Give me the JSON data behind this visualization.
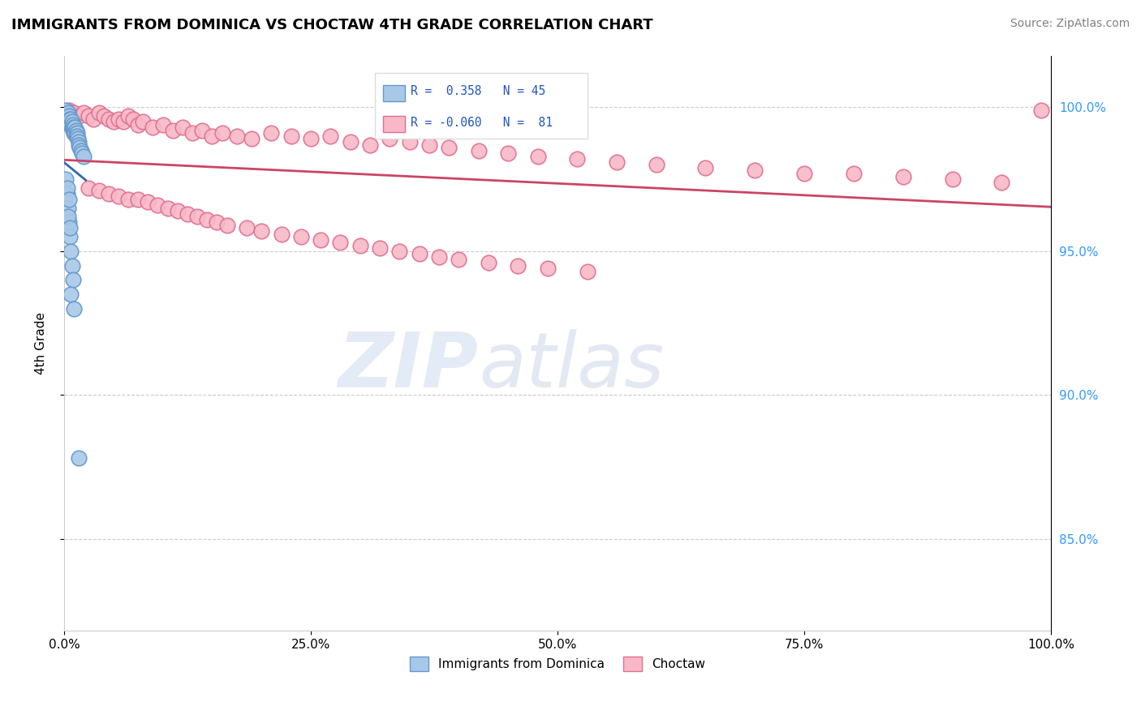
{
  "title": "IMMIGRANTS FROM DOMINICA VS CHOCTAW 4TH GRADE CORRELATION CHART",
  "source": "Source: ZipAtlas.com",
  "ylabel": "4th Grade",
  "ytick_values": [
    0.85,
    0.9,
    0.95,
    1.0
  ],
  "xlim": [
    0.0,
    1.0
  ],
  "ylim": [
    0.818,
    1.018
  ],
  "blue_color": "#a8c8e8",
  "blue_edge": "#6699cc",
  "pink_color": "#f8b8c8",
  "pink_edge": "#e07090",
  "trend_blue": "#3366bb",
  "trend_pink": "#cc4466",
  "watermark_zip": "ZIP",
  "watermark_atlas": "atlas",
  "legend_label1": "Immigrants from Dominica",
  "legend_label2": "Choctaw",
  "blue_scatter_x": [
    0.001,
    0.002,
    0.003,
    0.004,
    0.004,
    0.005,
    0.005,
    0.006,
    0.006,
    0.007,
    0.007,
    0.008,
    0.008,
    0.009,
    0.009,
    0.01,
    0.01,
    0.011,
    0.011,
    0.012,
    0.012,
    0.013,
    0.013,
    0.014,
    0.015,
    0.015,
    0.016,
    0.017,
    0.018,
    0.02,
    0.003,
    0.004,
    0.005,
    0.006,
    0.007,
    0.008,
    0.002,
    0.003,
    0.005,
    0.004,
    0.006,
    0.009,
    0.007,
    0.01,
    0.015
  ],
  "blue_scatter_y": [
    0.998,
    0.999,
    0.997,
    0.998,
    0.996,
    0.997,
    0.995,
    0.996,
    0.994,
    0.996,
    0.994,
    0.995,
    0.993,
    0.994,
    0.992,
    0.993,
    0.991,
    0.993,
    0.991,
    0.992,
    0.99,
    0.991,
    0.99,
    0.989,
    0.988,
    0.987,
    0.986,
    0.985,
    0.984,
    0.983,
    0.97,
    0.965,
    0.96,
    0.955,
    0.95,
    0.945,
    0.975,
    0.972,
    0.968,
    0.962,
    0.958,
    0.94,
    0.935,
    0.93,
    0.878
  ],
  "pink_scatter_x": [
    0.005,
    0.01,
    0.015,
    0.02,
    0.025,
    0.03,
    0.035,
    0.04,
    0.045,
    0.05,
    0.055,
    0.06,
    0.065,
    0.07,
    0.075,
    0.08,
    0.09,
    0.1,
    0.11,
    0.12,
    0.13,
    0.14,
    0.15,
    0.16,
    0.175,
    0.19,
    0.21,
    0.23,
    0.25,
    0.27,
    0.29,
    0.31,
    0.33,
    0.35,
    0.37,
    0.39,
    0.42,
    0.45,
    0.48,
    0.52,
    0.56,
    0.6,
    0.65,
    0.7,
    0.75,
    0.8,
    0.85,
    0.9,
    0.95,
    0.99,
    0.025,
    0.035,
    0.045,
    0.055,
    0.065,
    0.075,
    0.085,
    0.095,
    0.105,
    0.115,
    0.125,
    0.135,
    0.145,
    0.155,
    0.165,
    0.185,
    0.2,
    0.22,
    0.24,
    0.26,
    0.28,
    0.3,
    0.32,
    0.34,
    0.36,
    0.38,
    0.4,
    0.43,
    0.46,
    0.49,
    0.53
  ],
  "pink_scatter_y": [
    0.999,
    0.998,
    0.997,
    0.998,
    0.997,
    0.996,
    0.998,
    0.997,
    0.996,
    0.995,
    0.996,
    0.995,
    0.997,
    0.996,
    0.994,
    0.995,
    0.993,
    0.994,
    0.992,
    0.993,
    0.991,
    0.992,
    0.99,
    0.991,
    0.99,
    0.989,
    0.991,
    0.99,
    0.989,
    0.99,
    0.988,
    0.987,
    0.989,
    0.988,
    0.987,
    0.986,
    0.985,
    0.984,
    0.983,
    0.982,
    0.981,
    0.98,
    0.979,
    0.978,
    0.977,
    0.977,
    0.976,
    0.975,
    0.974,
    0.999,
    0.972,
    0.971,
    0.97,
    0.969,
    0.968,
    0.968,
    0.967,
    0.966,
    0.965,
    0.964,
    0.963,
    0.962,
    0.961,
    0.96,
    0.959,
    0.958,
    0.957,
    0.956,
    0.955,
    0.954,
    0.953,
    0.952,
    0.951,
    0.95,
    0.949,
    0.948,
    0.947,
    0.946,
    0.945,
    0.944,
    0.943
  ],
  "blue_line_x_start": 0.0,
  "blue_line_x_end": 0.022,
  "pink_line_x_start": 0.0,
  "pink_line_x_end": 1.0
}
